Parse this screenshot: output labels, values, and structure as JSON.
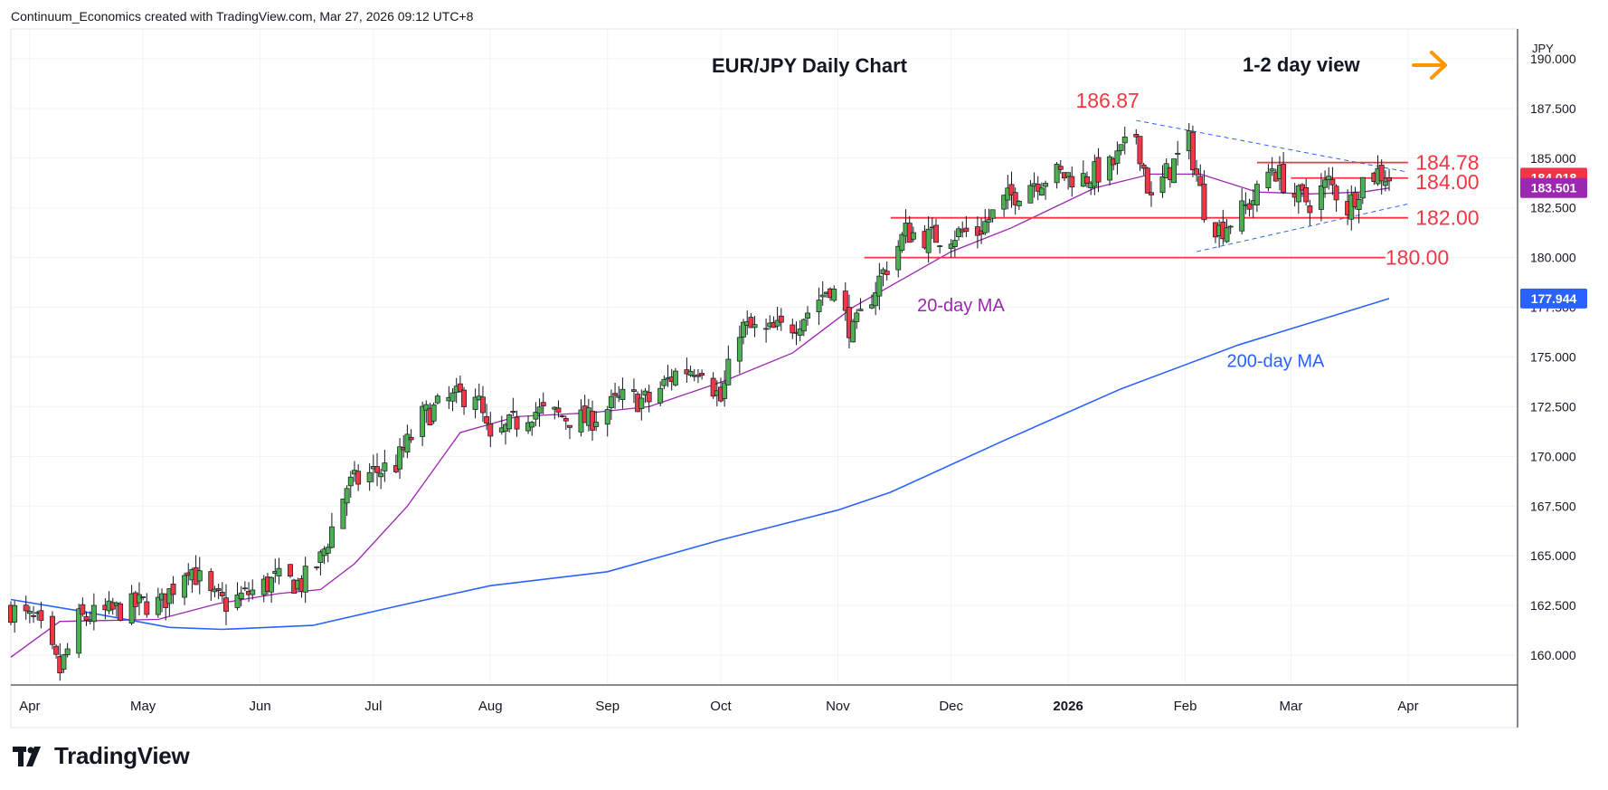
{
  "header": {
    "text": "Continuum_Economics created with TradingView.com, Mar 27, 2026 09:12 UTC+8"
  },
  "brand": {
    "name": "TradingView"
  },
  "chart_data": {
    "type": "candlestick",
    "title": "EUR/JPY Daily Chart",
    "view_label": "1-2 day view",
    "currency": "JPY",
    "ylim": [
      158.5,
      191.5
    ],
    "y_ticks": [
      "190.000",
      "187.500",
      "185.000",
      "182.500",
      "180.000",
      "177.500",
      "175.000",
      "172.500",
      "170.000",
      "167.500",
      "165.000",
      "162.500",
      "160.000"
    ],
    "x_labels": [
      "Apr",
      "May",
      "Jun",
      "Jul",
      "Aug",
      "Sep",
      "Oct",
      "Nov",
      "Dec",
      "2026",
      "Feb",
      "Mar",
      "Apr"
    ],
    "x_range": [
      "2025-03-27",
      "2026-04-30"
    ],
    "closes": [
      {
        "d": "2025-03-27",
        "v": 162.3
      },
      {
        "d": "2025-04-03",
        "v": 161.6
      },
      {
        "d": "2025-04-09",
        "v": 159.2
      },
      {
        "d": "2025-04-14",
        "v": 161.8
      },
      {
        "d": "2025-04-23",
        "v": 162.2
      },
      {
        "d": "2025-05-01",
        "v": 162.6
      },
      {
        "d": "2025-05-06",
        "v": 162.6
      },
      {
        "d": "2025-05-13",
        "v": 164.6
      },
      {
        "d": "2025-05-19",
        "v": 162.9
      },
      {
        "d": "2025-05-23",
        "v": 162.6
      },
      {
        "d": "2025-05-30",
        "v": 163.2
      },
      {
        "d": "2025-06-05",
        "v": 163.8
      },
      {
        "d": "2025-06-12",
        "v": 163.6
      },
      {
        "d": "2025-06-17",
        "v": 164.8
      },
      {
        "d": "2025-06-24",
        "v": 168.5
      },
      {
        "d": "2025-07-01",
        "v": 169.2
      },
      {
        "d": "2025-07-07",
        "v": 169.6
      },
      {
        "d": "2025-07-14",
        "v": 172.0
      },
      {
        "d": "2025-07-21",
        "v": 172.8
      },
      {
        "d": "2025-07-28",
        "v": 173.3
      },
      {
        "d": "2025-08-01",
        "v": 170.6
      },
      {
        "d": "2025-08-06",
        "v": 171.5
      },
      {
        "d": "2025-08-12",
        "v": 172.3
      },
      {
        "d": "2025-08-20",
        "v": 172.0
      },
      {
        "d": "2025-08-27",
        "v": 171.8
      },
      {
        "d": "2025-09-05",
        "v": 172.9
      },
      {
        "d": "2025-09-12",
        "v": 172.8
      },
      {
        "d": "2025-09-19",
        "v": 174.2
      },
      {
        "d": "2025-09-26",
        "v": 174.6
      },
      {
        "d": "2025-10-01",
        "v": 172.8
      },
      {
        "d": "2025-10-06",
        "v": 176.5
      },
      {
        "d": "2025-10-13",
        "v": 176.2
      },
      {
        "d": "2025-10-20",
        "v": 176.6
      },
      {
        "d": "2025-10-24",
        "v": 177.3
      },
      {
        "d": "2025-10-30",
        "v": 178.6
      },
      {
        "d": "2025-11-05",
        "v": 176.2
      },
      {
        "d": "2025-11-12",
        "v": 178.9
      },
      {
        "d": "2025-11-19",
        "v": 181.3
      },
      {
        "d": "2025-11-25",
        "v": 181.0
      },
      {
        "d": "2025-12-02",
        "v": 181.2
      },
      {
        "d": "2025-12-08",
        "v": 181.3
      },
      {
        "d": "2025-12-15",
        "v": 182.8
      },
      {
        "d": "2025-12-22",
        "v": 183.8
      },
      {
        "d": "2025-12-29",
        "v": 184.2
      },
      {
        "d": "2026-01-05",
        "v": 184.0
      },
      {
        "d": "2026-01-12",
        "v": 184.5
      },
      {
        "d": "2026-01-19",
        "v": 186.2
      },
      {
        "d": "2026-01-23",
        "v": 182.8
      },
      {
        "d": "2026-01-27",
        "v": 184.2
      },
      {
        "d": "2026-02-02",
        "v": 185.8
      },
      {
        "d": "2026-02-06",
        "v": 182.5
      },
      {
        "d": "2026-02-10",
        "v": 181.4
      },
      {
        "d": "2026-02-16",
        "v": 182.3
      },
      {
        "d": "2026-02-20",
        "v": 183.2
      },
      {
        "d": "2026-02-24",
        "v": 184.6
      },
      {
        "d": "2026-03-02",
        "v": 183.1
      },
      {
        "d": "2026-03-06",
        "v": 182.8
      },
      {
        "d": "2026-03-11",
        "v": 183.8
      },
      {
        "d": "2026-03-16",
        "v": 182.5
      },
      {
        "d": "2026-03-20",
        "v": 183.9
      },
      {
        "d": "2026-03-24",
        "v": 184.3
      },
      {
        "d": "2026-03-27",
        "v": 184.02
      }
    ],
    "ma20": [
      {
        "d": "2025-03-27",
        "v": 159.9
      },
      {
        "d": "2025-04-09",
        "v": 161.7
      },
      {
        "d": "2025-05-05",
        "v": 161.8
      },
      {
        "d": "2025-05-21",
        "v": 162.6
      },
      {
        "d": "2025-06-06",
        "v": 163.1
      },
      {
        "d": "2025-06-17",
        "v": 163.3
      },
      {
        "d": "2025-06-26",
        "v": 164.6
      },
      {
        "d": "2025-07-10",
        "v": 167.5
      },
      {
        "d": "2025-07-24",
        "v": 171.2
      },
      {
        "d": "2025-08-08",
        "v": 172.0
      },
      {
        "d": "2025-08-28",
        "v": 172.2
      },
      {
        "d": "2025-09-12",
        "v": 172.5
      },
      {
        "d": "2025-10-02",
        "v": 173.8
      },
      {
        "d": "2025-10-20",
        "v": 175.2
      },
      {
        "d": "2025-11-05",
        "v": 177.5
      },
      {
        "d": "2025-11-18",
        "v": 178.9
      },
      {
        "d": "2025-12-01",
        "v": 180.3
      },
      {
        "d": "2025-12-17",
        "v": 181.5
      },
      {
        "d": "2026-01-08",
        "v": 183.5
      },
      {
        "d": "2026-01-23",
        "v": 184.2
      },
      {
        "d": "2026-02-05",
        "v": 184.2
      },
      {
        "d": "2026-02-20",
        "v": 183.3
      },
      {
        "d": "2026-03-06",
        "v": 183.2
      },
      {
        "d": "2026-03-20",
        "v": 183.3
      },
      {
        "d": "2026-03-27",
        "v": 183.5
      }
    ],
    "ma200": [
      {
        "d": "2025-03-27",
        "v": 162.8
      },
      {
        "d": "2025-04-15",
        "v": 162.2
      },
      {
        "d": "2025-05-08",
        "v": 161.4
      },
      {
        "d": "2025-05-22",
        "v": 161.3
      },
      {
        "d": "2025-06-15",
        "v": 161.5
      },
      {
        "d": "2025-07-08",
        "v": 162.5
      },
      {
        "d": "2025-08-01",
        "v": 163.5
      },
      {
        "d": "2025-09-01",
        "v": 164.2
      },
      {
        "d": "2025-10-01",
        "v": 165.8
      },
      {
        "d": "2025-11-01",
        "v": 167.3
      },
      {
        "d": "2025-11-15",
        "v": 168.2
      },
      {
        "d": "2025-12-15",
        "v": 170.8
      },
      {
        "d": "2026-01-15",
        "v": 173.4
      },
      {
        "d": "2026-02-15",
        "v": 175.6
      },
      {
        "d": "2026-03-27",
        "v": 177.94
      }
    ],
    "levels": [
      {
        "label": "186.87",
        "value": 186.87
      },
      {
        "label": "184.78",
        "value": 184.78
      },
      {
        "label": "184.00",
        "value": 184.0
      },
      {
        "label": "182.00",
        "value": 182.0
      },
      {
        "label": "180.00",
        "value": 180.0
      }
    ],
    "ma_labels": {
      "ma20": "20-day MA",
      "ma200": "200-day MA"
    },
    "price_tags": [
      {
        "label": "184.018",
        "value": 184.018,
        "color": "#f23645"
      },
      {
        "label": "183.501",
        "value": 183.501,
        "color": "#9c27b0"
      },
      {
        "label": "177.944",
        "value": 177.944,
        "color": "#2962ff"
      }
    ],
    "colors": {
      "up": "#4caf50",
      "down": "#f23645",
      "levels": "#f23645",
      "ma20": "#9c27b0",
      "ma200": "#2962ff",
      "trend": "#2962ff",
      "arrow": "#ff9800",
      "grid": "#f0f3fa"
    },
    "grid": true
  }
}
